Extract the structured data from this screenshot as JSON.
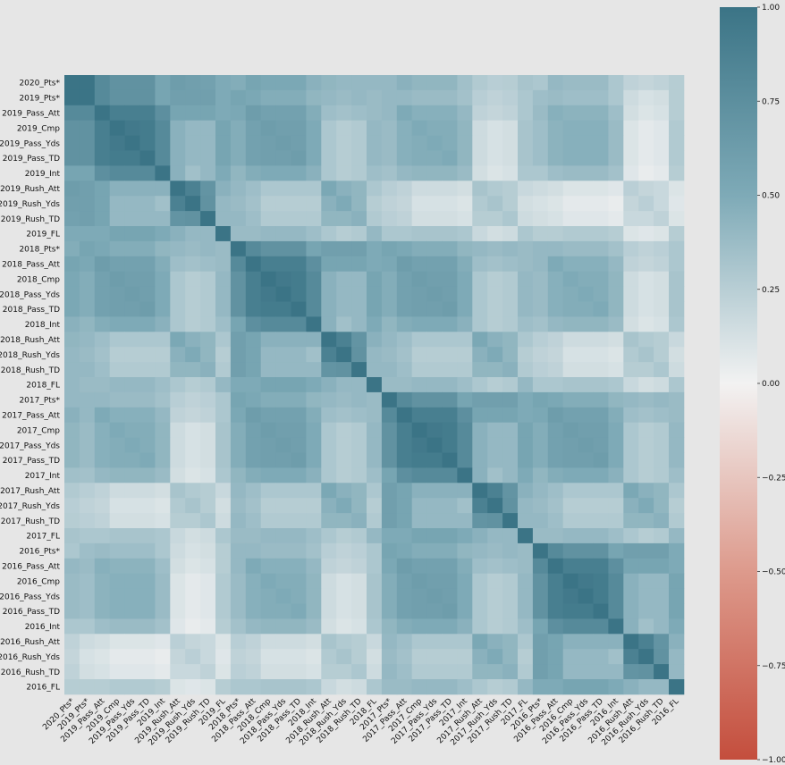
{
  "chart_data": {
    "type": "heatmap",
    "title": "",
    "xlabel": "",
    "ylabel": "",
    "labels": [
      "2020_Pts*",
      "2019_Pts*",
      "2019_Pass_Att",
      "2019_Cmp",
      "2019_Pass_Yds",
      "2019_Pass_TD",
      "2019_Int",
      "2019_Rush_Att",
      "2019_Rush_Yds",
      "2019_Rush_TD",
      "2019_FL",
      "2018_Pts*",
      "2018_Pass_Att",
      "2018_Cmp",
      "2018_Pass_Yds",
      "2018_Pass_TD",
      "2018_Int",
      "2018_Rush_Att",
      "2018_Rush_Yds",
      "2018_Rush_TD",
      "2018_FL",
      "2017_Pts*",
      "2017_Pass_Att",
      "2017_Cmp",
      "2017_Pass_Yds",
      "2017_Pass_TD",
      "2017_Int",
      "2017_Rush_Att",
      "2017_Rush_Yds",
      "2017_Rush_TD",
      "2017_FL",
      "2016_Pts*",
      "2016_Pass_Att",
      "2016_Cmp",
      "2016_Pass_Yds",
      "2016_Pass_TD",
      "2016_Int",
      "2016_Rush_Att",
      "2016_Rush_Yds",
      "2016_Rush_TD",
      "2016_FL"
    ],
    "colorbar": {
      "vmin": -1.0,
      "vmax": 1.0,
      "ticks": [
        "1.00",
        "0.75",
        "0.50",
        "0.25",
        "0.00",
        "−0.25",
        "−0.50",
        "−0.75",
        "−1.00"
      ],
      "tick_values": [
        1.0,
        0.75,
        0.5,
        0.25,
        0.0,
        -0.25,
        -0.5,
        -0.75,
        -1.0
      ]
    },
    "colors": {
      "positive": "#3b7486",
      "neutral": "#f2f2f2",
      "negative": "#c44e3d",
      "background": "#e6e6e6"
    },
    "groups": {
      "subtypes": [
        "Pts",
        "Pass",
        "Pass",
        "Pass",
        "Pass",
        "Int",
        "Rush",
        "Rush",
        "Rush",
        "FL"
      ]
    },
    "block_correlations": {
      "same_year": [
        [
          1.0,
          0.8,
          0.72,
          0.72,
          0.72,
          0.55,
          0.6,
          0.6,
          0.6,
          0.5
        ],
        [
          0.8,
          1.0,
          0.9,
          0.9,
          0.9,
          0.75,
          0.55,
          0.55,
          0.55,
          0.5
        ],
        [
          0.72,
          0.9,
          1.0,
          0.95,
          0.93,
          0.8,
          0.45,
          0.4,
          0.4,
          0.55
        ],
        [
          0.72,
          0.9,
          0.95,
          1.0,
          0.93,
          0.8,
          0.45,
          0.4,
          0.4,
          0.55
        ],
        [
          0.72,
          0.9,
          0.93,
          0.93,
          1.0,
          0.8,
          0.45,
          0.4,
          0.4,
          0.55
        ],
        [
          0.55,
          0.75,
          0.8,
          0.8,
          0.8,
          1.0,
          0.45,
          0.35,
          0.4,
          0.5
        ],
        [
          0.6,
          0.55,
          0.45,
          0.45,
          0.45,
          0.45,
          1.0,
          0.88,
          0.7,
          0.45
        ],
        [
          0.6,
          0.55,
          0.4,
          0.4,
          0.4,
          0.35,
          0.88,
          1.0,
          0.72,
          0.4
        ],
        [
          0.6,
          0.55,
          0.4,
          0.4,
          0.4,
          0.4,
          0.7,
          0.72,
          1.0,
          0.4
        ],
        [
          0.5,
          0.5,
          0.55,
          0.55,
          0.55,
          0.5,
          0.45,
          0.4,
          0.4,
          1.0
        ]
      ],
      "cross_year_by_lag": {
        "1": [
          [
            0.55,
            0.52,
            0.48,
            0.48,
            0.48,
            0.42,
            0.4,
            0.38,
            0.4,
            0.38
          ],
          [
            0.52,
            0.62,
            0.58,
            0.58,
            0.58,
            0.48,
            0.36,
            0.34,
            0.36,
            0.38
          ],
          [
            0.48,
            0.58,
            0.62,
            0.6,
            0.6,
            0.5,
            0.3,
            0.26,
            0.28,
            0.4
          ],
          [
            0.48,
            0.58,
            0.6,
            0.62,
            0.6,
            0.5,
            0.3,
            0.26,
            0.28,
            0.4
          ],
          [
            0.48,
            0.58,
            0.6,
            0.6,
            0.62,
            0.5,
            0.3,
            0.26,
            0.28,
            0.4
          ],
          [
            0.42,
            0.48,
            0.5,
            0.5,
            0.5,
            0.45,
            0.3,
            0.26,
            0.28,
            0.36
          ],
          [
            0.4,
            0.36,
            0.3,
            0.3,
            0.3,
            0.3,
            0.52,
            0.45,
            0.42,
            0.3
          ],
          [
            0.38,
            0.34,
            0.26,
            0.26,
            0.26,
            0.26,
            0.45,
            0.5,
            0.42,
            0.26
          ],
          [
            0.4,
            0.36,
            0.28,
            0.28,
            0.28,
            0.28,
            0.42,
            0.42,
            0.45,
            0.28
          ],
          [
            0.38,
            0.38,
            0.4,
            0.4,
            0.4,
            0.36,
            0.3,
            0.26,
            0.28,
            0.4
          ]
        ],
        "2": [
          [
            0.4,
            0.4,
            0.38,
            0.38,
            0.38,
            0.34,
            0.25,
            0.22,
            0.24,
            0.3
          ],
          [
            0.4,
            0.5,
            0.46,
            0.46,
            0.46,
            0.4,
            0.22,
            0.2,
            0.22,
            0.3
          ],
          [
            0.38,
            0.46,
            0.5,
            0.48,
            0.48,
            0.42,
            0.16,
            0.12,
            0.14,
            0.32
          ],
          [
            0.38,
            0.46,
            0.48,
            0.5,
            0.48,
            0.42,
            0.16,
            0.12,
            0.14,
            0.32
          ],
          [
            0.38,
            0.46,
            0.48,
            0.48,
            0.5,
            0.42,
            0.16,
            0.12,
            0.14,
            0.32
          ],
          [
            0.34,
            0.4,
            0.42,
            0.42,
            0.42,
            0.38,
            0.14,
            0.1,
            0.12,
            0.3
          ],
          [
            0.25,
            0.22,
            0.16,
            0.16,
            0.16,
            0.14,
            0.32,
            0.28,
            0.26,
            0.18
          ],
          [
            0.22,
            0.2,
            0.12,
            0.12,
            0.12,
            0.1,
            0.28,
            0.32,
            0.26,
            0.14
          ],
          [
            0.24,
            0.22,
            0.14,
            0.14,
            0.14,
            0.12,
            0.26,
            0.26,
            0.3,
            0.16
          ],
          [
            0.3,
            0.3,
            0.32,
            0.32,
            0.32,
            0.3,
            0.18,
            0.14,
            0.16,
            0.3
          ]
        ],
        "3": [
          [
            0.36,
            0.38,
            0.36,
            0.36,
            0.36,
            0.3,
            0.16,
            0.12,
            0.14,
            0.26
          ],
          [
            0.38,
            0.46,
            0.44,
            0.44,
            0.44,
            0.36,
            0.14,
            0.1,
            0.12,
            0.26
          ],
          [
            0.36,
            0.44,
            0.46,
            0.46,
            0.46,
            0.38,
            0.1,
            0.06,
            0.08,
            0.28
          ],
          [
            0.36,
            0.44,
            0.46,
            0.46,
            0.46,
            0.38,
            0.1,
            0.06,
            0.08,
            0.28
          ],
          [
            0.36,
            0.44,
            0.46,
            0.46,
            0.46,
            0.38,
            0.1,
            0.06,
            0.08,
            0.28
          ],
          [
            0.3,
            0.36,
            0.38,
            0.38,
            0.38,
            0.34,
            0.08,
            0.04,
            0.06,
            0.26
          ],
          [
            0.16,
            0.14,
            0.1,
            0.1,
            0.1,
            0.08,
            0.24,
            0.2,
            0.18,
            0.1
          ],
          [
            0.12,
            0.1,
            0.06,
            0.06,
            0.06,
            0.04,
            0.2,
            0.24,
            0.18,
            0.08
          ],
          [
            0.14,
            0.12,
            0.08,
            0.08,
            0.08,
            0.06,
            0.18,
            0.18,
            0.22,
            0.1
          ],
          [
            0.26,
            0.26,
            0.28,
            0.28,
            0.28,
            0.26,
            0.1,
            0.08,
            0.1,
            0.26
          ]
        ]
      },
      "target_vs_lag": {
        "1": [
          1.0,
          0.8,
          0.72,
          0.72,
          0.72,
          0.55,
          0.62,
          0.6,
          0.58,
          0.5
        ],
        "2": [
          0.48,
          0.55,
          0.52,
          0.52,
          0.52,
          0.45,
          0.42,
          0.4,
          0.4,
          0.4
        ],
        "3": [
          0.4,
          0.45,
          0.42,
          0.42,
          0.42,
          0.35,
          0.28,
          0.25,
          0.26,
          0.32
        ],
        "4": [
          0.3,
          0.4,
          0.38,
          0.38,
          0.38,
          0.3,
          0.22,
          0.2,
          0.22,
          0.26
        ]
      }
    }
  }
}
